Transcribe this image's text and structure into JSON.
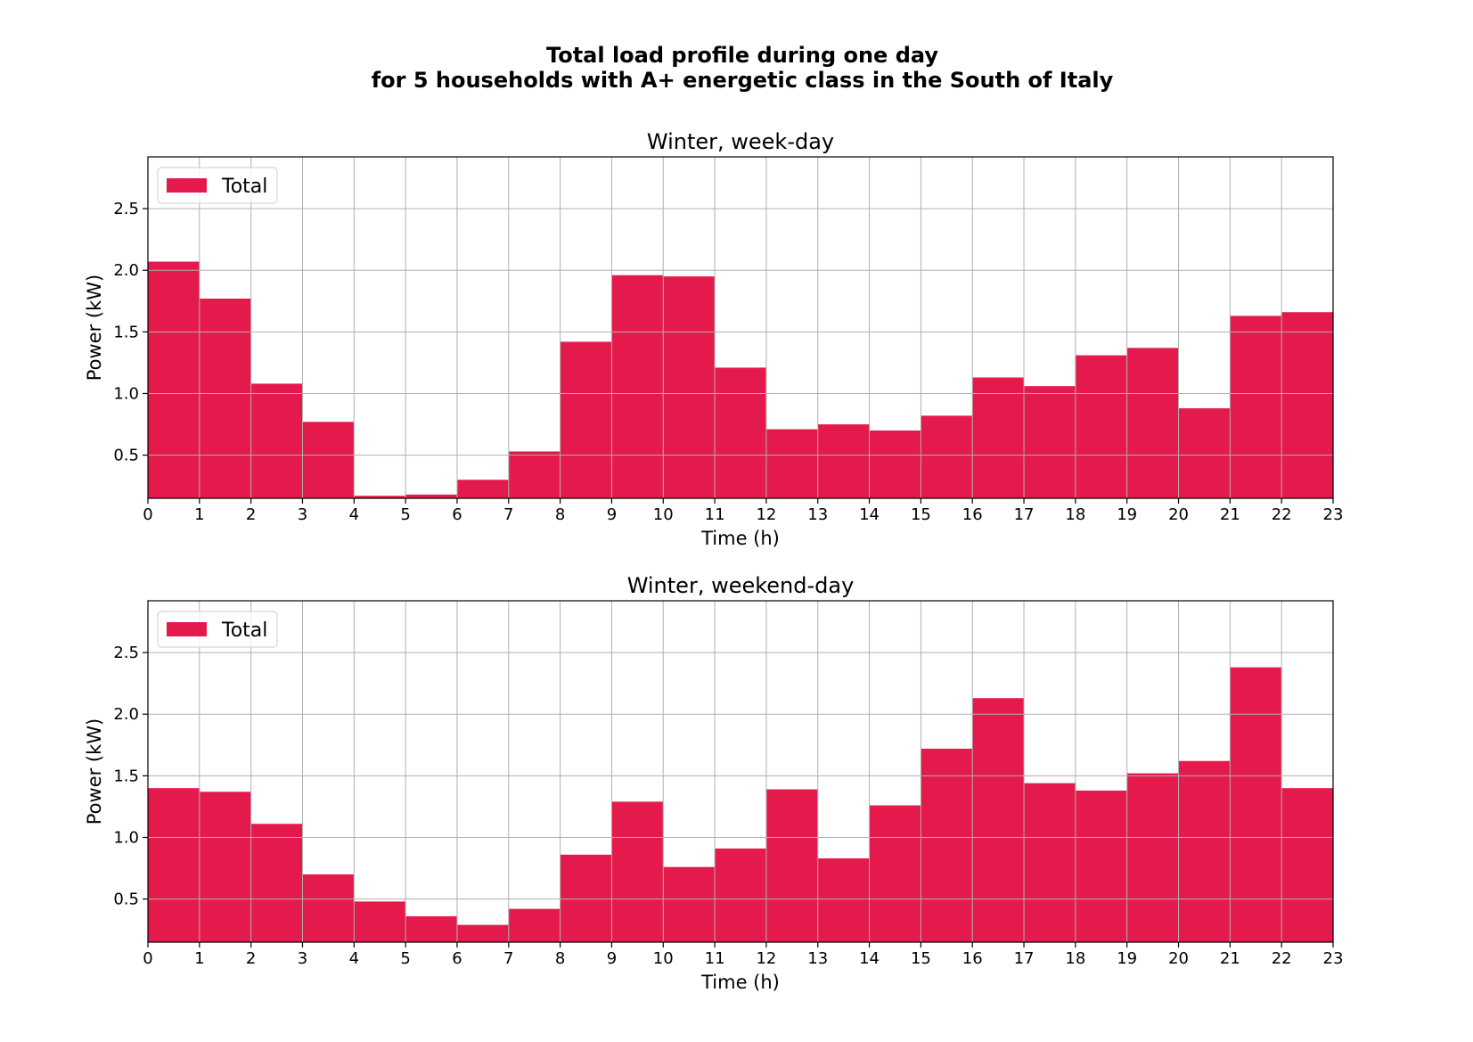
{
  "figure": {
    "title_line1": "Total load profile during one day",
    "title_line2": "for 5 households with A+ energetic class in the South of Italy"
  },
  "colors": {
    "bar": "#e41a4c",
    "legend_edge": "#cccccc"
  },
  "chart_data": [
    {
      "type": "bar",
      "title": "Winter, week-day",
      "xlabel": "Time (h)",
      "ylabel": "Power (kW)",
      "x": [
        0,
        1,
        2,
        3,
        4,
        5,
        6,
        7,
        8,
        9,
        10,
        11,
        12,
        13,
        14,
        15,
        16,
        17,
        18,
        19,
        20,
        21,
        22
      ],
      "xticks": [
        "0",
        "1",
        "2",
        "3",
        "4",
        "5",
        "6",
        "7",
        "8",
        "9",
        "10",
        "11",
        "12",
        "13",
        "14",
        "15",
        "16",
        "17",
        "18",
        "19",
        "20",
        "21",
        "22",
        "23"
      ],
      "xlim": [
        0,
        23
      ],
      "ylim": [
        0.15,
        2.92
      ],
      "yticks": [
        "0.5",
        "1.0",
        "1.5",
        "2.0",
        "2.5"
      ],
      "grid": true,
      "legend": "top-left",
      "series": [
        {
          "name": "Total",
          "values": [
            2.07,
            1.77,
            1.08,
            0.77,
            0.17,
            0.18,
            0.3,
            0.53,
            1.42,
            1.96,
            1.95,
            1.21,
            0.71,
            0.75,
            0.7,
            0.82,
            1.13,
            1.06,
            1.31,
            1.37,
            0.88,
            1.63,
            1.66
          ]
        }
      ]
    },
    {
      "type": "bar",
      "title": "Winter, weekend-day",
      "xlabel": "Time (h)",
      "ylabel": "Power (kW)",
      "x": [
        0,
        1,
        2,
        3,
        4,
        5,
        6,
        7,
        8,
        9,
        10,
        11,
        12,
        13,
        14,
        15,
        16,
        17,
        18,
        19,
        20,
        21,
        22
      ],
      "xticks": [
        "0",
        "1",
        "2",
        "3",
        "4",
        "5",
        "6",
        "7",
        "8",
        "9",
        "10",
        "11",
        "12",
        "13",
        "14",
        "15",
        "16",
        "17",
        "18",
        "19",
        "20",
        "21",
        "22",
        "23"
      ],
      "xlim": [
        0,
        23
      ],
      "ylim": [
        0.15,
        2.92
      ],
      "yticks": [
        "0.5",
        "1.0",
        "1.5",
        "2.0",
        "2.5"
      ],
      "grid": true,
      "legend": "top-left",
      "series": [
        {
          "name": "Total",
          "values": [
            1.4,
            1.37,
            1.11,
            0.7,
            0.48,
            0.36,
            0.29,
            0.42,
            0.86,
            1.29,
            0.76,
            0.91,
            1.39,
            0.83,
            1.26,
            1.72,
            2.13,
            1.44,
            1.38,
            1.52,
            1.62,
            2.38,
            1.4
          ]
        }
      ]
    }
  ]
}
